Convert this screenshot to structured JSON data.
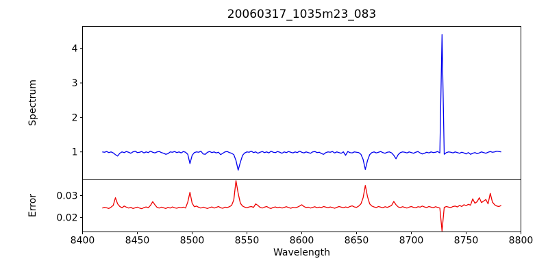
{
  "chart_data": {
    "type": "line",
    "title": "20060317_1035m23_083",
    "xlabel": "Wavelength",
    "grid": false,
    "legend": "none",
    "xlim": [
      8400,
      8800
    ],
    "x_ticks": [
      8400,
      8450,
      8500,
      8550,
      8600,
      8650,
      8700,
      8750,
      8800
    ],
    "x_tick_labels": [
      "8400",
      "8450",
      "8500",
      "8550",
      "8600",
      "8650",
      "8700",
      "8750",
      "8800"
    ],
    "panels": [
      {
        "name": "spectrum",
        "ylabel": "Spectrum",
        "ylim": [
          0.19,
          4.64
        ],
        "y_ticks": [
          1,
          2,
          3,
          4
        ],
        "y_tick_labels": [
          "1",
          "2",
          "3",
          "4"
        ]
      },
      {
        "name": "error",
        "ylabel": "Error",
        "ylim": [
          0.0134,
          0.0372
        ],
        "y_ticks": [
          0.02,
          0.03
        ],
        "y_tick_labels": [
          "0.02",
          "0.03"
        ]
      }
    ],
    "series": [
      {
        "name": "spectrum-flux",
        "panel": 0,
        "color": "#0000ee",
        "line_width": 1.3,
        "x_start": 8418,
        "x_step": 2,
        "notable_features": {
          "absorption_dips_wavelengths": [
            8430,
            8498,
            8542,
            8640,
            8658,
            8688
          ],
          "emission_spike": {
            "wavelength": 8728,
            "value": 4.4
          },
          "continuum_level": 1.0
        },
        "values": [
          1.0,
          0.99,
          1.01,
          0.98,
          1.0,
          0.97,
          0.92,
          0.88,
          0.96,
          1.0,
          0.98,
          1.01,
          0.99,
          0.96,
          1.0,
          1.02,
          0.98,
          0.99,
          1.01,
          0.97,
          1.0,
          0.98,
          1.02,
          0.99,
          0.97,
          1.0,
          1.01,
          0.98,
          0.96,
          0.93,
          0.95,
          1.0,
          0.99,
          1.01,
          0.98,
          1.0,
          0.97,
          1.01,
          0.99,
          0.93,
          0.66,
          0.9,
          0.98,
          1.0,
          0.99,
          1.02,
          0.94,
          0.93,
          0.99,
          1.01,
          0.98,
          1.0,
          0.97,
          0.99,
          0.92,
          0.96,
          1.0,
          1.01,
          0.98,
          0.96,
          0.92,
          0.75,
          0.47,
          0.7,
          0.9,
          0.97,
          1.0,
          0.99,
          1.02,
          0.98,
          1.0,
          0.96,
          0.99,
          1.01,
          0.98,
          1.0,
          0.97,
          1.02,
          0.99,
          0.98,
          1.01,
          0.99,
          0.96,
          1.0,
          0.98,
          1.01,
          0.99,
          0.97,
          1.0,
          0.98,
          1.02,
          0.99,
          0.97,
          1.0,
          0.98,
          0.96,
          1.0,
          1.01,
          0.98,
          0.99,
          0.95,
          0.93,
          0.98,
          1.0,
          0.99,
          1.01,
          0.97,
          1.0,
          0.98,
          0.96,
          1.0,
          0.9,
          1.01,
          0.98,
          0.97,
          1.0,
          0.99,
          0.98,
          0.93,
          0.78,
          0.49,
          0.75,
          0.92,
          0.98,
          1.0,
          0.97,
          0.99,
          1.01,
          0.98,
          0.96,
          0.99,
          1.0,
          0.97,
          0.9,
          0.8,
          0.92,
          0.98,
          1.0,
          0.99,
          0.97,
          1.0,
          0.98,
          0.96,
          0.99,
          1.01,
          0.97,
          0.94,
          0.96,
          0.99,
          0.97,
          1.0,
          0.98,
          0.99,
          1.01,
          0.97,
          4.4,
          0.93,
          0.98,
          1.0,
          0.99,
          0.97,
          1.0,
          0.98,
          0.96,
          0.99,
          0.97,
          0.94,
          0.98,
          0.93,
          0.96,
          0.98,
          0.95,
          0.97,
          1.0,
          0.98,
          0.96,
          0.99,
          1.01,
          0.99,
          1.0,
          1.02,
          1.01,
          1.0
        ]
      },
      {
        "name": "error-curve",
        "panel": 1,
        "color": "#ee0000",
        "line_width": 1.3,
        "x_start": 8418,
        "x_step": 2,
        "notable_features": {
          "peaks_wavelengths": [
            8430,
            8464,
            8498,
            8540,
            8658,
            8684,
            8772
          ],
          "downward_spike": {
            "wavelength": 8728,
            "value": 0.0138
          },
          "baseline_level": 0.0246
        },
        "values": [
          0.0243,
          0.0246,
          0.0244,
          0.0241,
          0.0247,
          0.0255,
          0.029,
          0.0262,
          0.025,
          0.0244,
          0.0252,
          0.0247,
          0.0243,
          0.0246,
          0.0241,
          0.0244,
          0.0247,
          0.0243,
          0.024,
          0.0245,
          0.0248,
          0.0244,
          0.0255,
          0.0272,
          0.0258,
          0.0246,
          0.0243,
          0.0247,
          0.0244,
          0.0241,
          0.0246,
          0.0243,
          0.0248,
          0.0244,
          0.0242,
          0.0246,
          0.0244,
          0.0247,
          0.0243,
          0.027,
          0.0315,
          0.0265,
          0.0249,
          0.0252,
          0.0246,
          0.0243,
          0.0247,
          0.0244,
          0.0241,
          0.0245,
          0.0248,
          0.0243,
          0.0246,
          0.025,
          0.0244,
          0.0242,
          0.0247,
          0.0245,
          0.0249,
          0.0255,
          0.028,
          0.0368,
          0.031,
          0.0265,
          0.0252,
          0.0247,
          0.0244,
          0.0248,
          0.025,
          0.0246,
          0.0262,
          0.0255,
          0.0246,
          0.0243,
          0.0247,
          0.025,
          0.0244,
          0.0241,
          0.0246,
          0.0248,
          0.0244,
          0.0247,
          0.0243,
          0.0246,
          0.0249,
          0.0245,
          0.0242,
          0.0246,
          0.0244,
          0.0247,
          0.0252,
          0.0258,
          0.025,
          0.0245,
          0.0247,
          0.0243,
          0.0246,
          0.0249,
          0.0244,
          0.0247,
          0.0245,
          0.025,
          0.0247,
          0.0244,
          0.0248,
          0.0245,
          0.0242,
          0.0246,
          0.025,
          0.0247,
          0.0244,
          0.0248,
          0.0245,
          0.025,
          0.0253,
          0.0248,
          0.0246,
          0.0252,
          0.0262,
          0.029,
          0.0346,
          0.0295,
          0.0262,
          0.0252,
          0.0248,
          0.0245,
          0.025,
          0.0247,
          0.0244,
          0.0249,
          0.0246,
          0.025,
          0.0255,
          0.0273,
          0.0258,
          0.0248,
          0.0245,
          0.0249,
          0.0246,
          0.0243,
          0.0247,
          0.025,
          0.0246,
          0.0244,
          0.0249,
          0.0247,
          0.0252,
          0.0248,
          0.0245,
          0.025,
          0.0247,
          0.0244,
          0.0249,
          0.0246,
          0.0243,
          0.0138,
          0.0246,
          0.025,
          0.0247,
          0.0245,
          0.025,
          0.0252,
          0.0248,
          0.0255,
          0.025,
          0.0258,
          0.0254,
          0.026,
          0.0256,
          0.0285,
          0.0265,
          0.0272,
          0.029,
          0.0268,
          0.0275,
          0.0282,
          0.0262,
          0.031,
          0.027,
          0.0258,
          0.0252,
          0.025,
          0.0255
        ]
      }
    ],
    "colors": {
      "spectrum_line": "#0000ee",
      "error_line": "#ee0000",
      "axes": "#000000",
      "background": "#ffffff"
    }
  }
}
